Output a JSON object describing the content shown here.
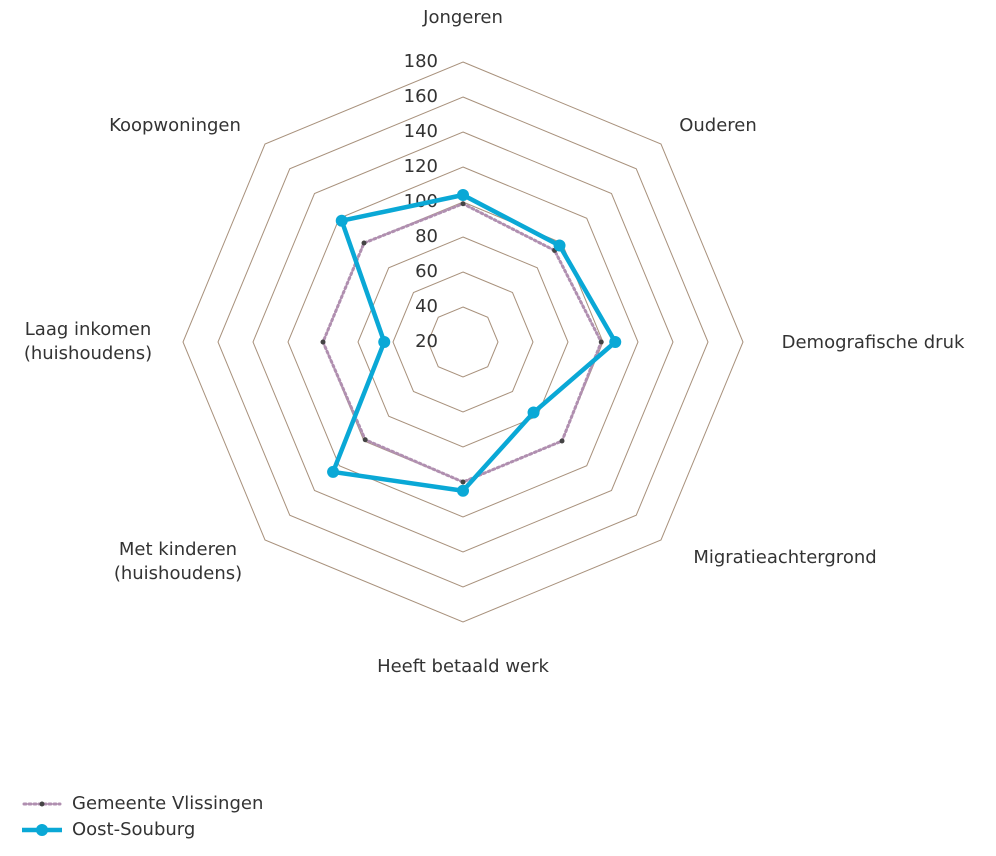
{
  "chart_data": {
    "type": "radar",
    "categories": [
      "Jongeren",
      "Ouderen",
      "Demografische druk",
      "Migratieachtergrond",
      "Heeft betaald werk",
      "Met kinderen (huishoudens)",
      "Laag inkomen (huishoudens)",
      "Koopwoningen"
    ],
    "rlim": [
      20,
      180
    ],
    "rticks": [
      20,
      40,
      60,
      80,
      100,
      120,
      140,
      160,
      180
    ],
    "grid_color": "#a8917c",
    "legend": "bottom-left",
    "series": [
      {
        "name": "Gemeente Vlissingen",
        "color": "#b08fb0",
        "values": [
          99,
          94,
          99,
          100,
          100,
          99,
          100,
          100
        ]
      },
      {
        "name": "Oost-Souburg",
        "color": "#0aa8d6",
        "values": [
          104,
          98,
          107,
          77,
          105,
          125,
          65,
          118
        ]
      }
    ]
  }
}
